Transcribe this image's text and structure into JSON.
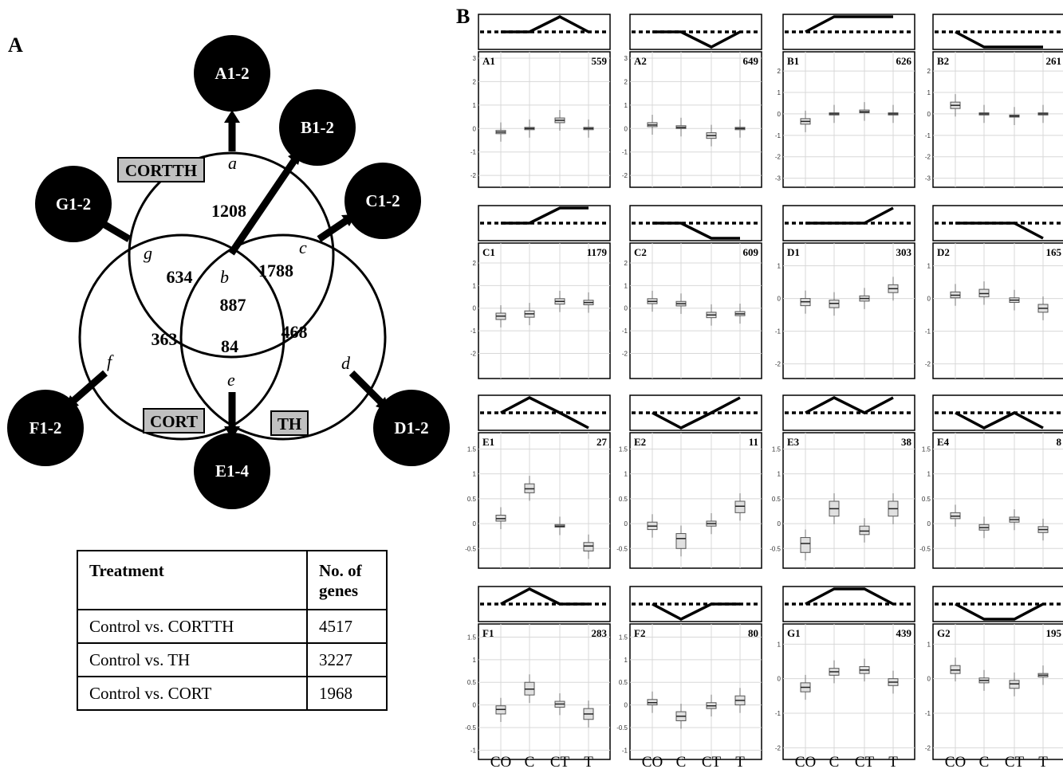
{
  "panel_labels": {
    "a": "A",
    "b": "B"
  },
  "venn": {
    "sets": [
      {
        "id": "cortth",
        "label": "CORTTH"
      },
      {
        "id": "cort",
        "label": "CORT"
      },
      {
        "id": "th",
        "label": "TH"
      }
    ],
    "region_letters": {
      "a": "a",
      "b": "b",
      "c": "c",
      "d": "d",
      "e": "e",
      "f": "f",
      "g": "g"
    },
    "region_counts": {
      "a": "1208",
      "g": "634",
      "b": "887",
      "c": "1788",
      "f": "363",
      "e": "84",
      "d": "468"
    },
    "nodes": {
      "a": "A1-2",
      "b": "B1-2",
      "c": "C1-2",
      "d": "D1-2",
      "e": "E1-4",
      "f": "F1-2",
      "g": "G1-2"
    },
    "fill_colors": {
      "node": "#000000",
      "tag": "#c0c0c0"
    }
  },
  "table": {
    "headers": [
      "Treatment",
      "No. of genes"
    ],
    "rows": [
      {
        "treatment": "Control vs. CORTTH",
        "genes": "4517"
      },
      {
        "treatment": "Control vs. TH",
        "genes": "3227"
      },
      {
        "treatment": "Control vs. CORT",
        "genes": "1968"
      }
    ]
  },
  "chart_data": {
    "type": "box",
    "categories": [
      "CO",
      "C",
      "CT",
      "T"
    ],
    "grid": true,
    "panels": [
      {
        "id": "A1",
        "count": "559",
        "pattern": [
          0,
          0,
          1,
          0
        ],
        "yticks": [
          "3",
          "2",
          "1",
          "0",
          "-1",
          "-2"
        ],
        "ylim": [
          -2.3,
          3
        ],
        "medians": [
          -0.15,
          0.0,
          0.35,
          0.0
        ],
        "q1": [
          -0.22,
          -0.05,
          0.25,
          -0.05
        ],
        "q3": [
          -0.08,
          0.05,
          0.45,
          0.05
        ]
      },
      {
        "id": "A2",
        "count": "649",
        "pattern": [
          0,
          0,
          -1,
          0
        ],
        "yticks": [
          "3",
          "2",
          "1",
          "0",
          "-1",
          "-2"
        ],
        "ylim": [
          -2.3,
          3
        ],
        "medians": [
          0.15,
          0.05,
          -0.3,
          0.0
        ],
        "q1": [
          0.08,
          0.0,
          -0.42,
          -0.05
        ],
        "q3": [
          0.25,
          0.12,
          -0.18,
          0.05
        ]
      },
      {
        "id": "B1",
        "count": "626",
        "pattern": [
          0,
          1,
          1,
          1
        ],
        "yticks": [
          "2",
          "1",
          "0",
          "-1",
          "-2",
          "-3"
        ],
        "ylim": [
          -3.2,
          2.6
        ],
        "medians": [
          -0.35,
          0.0,
          0.1,
          0.0
        ],
        "q1": [
          -0.48,
          -0.05,
          0.05,
          -0.05
        ],
        "q3": [
          -0.22,
          0.05,
          0.18,
          0.05
        ]
      },
      {
        "id": "B2",
        "count": "261",
        "pattern": [
          0,
          -1,
          -1,
          -1
        ],
        "yticks": [
          "2",
          "1",
          "0",
          "-1",
          "-2",
          "-3"
        ],
        "ylim": [
          -3.2,
          2.6
        ],
        "medians": [
          0.4,
          0.0,
          -0.1,
          0.0
        ],
        "q1": [
          0.25,
          -0.05,
          -0.15,
          -0.05
        ],
        "q3": [
          0.55,
          0.05,
          -0.05,
          0.05
        ]
      },
      {
        "id": "C1",
        "count": "1179",
        "pattern": [
          0,
          0,
          1,
          1
        ],
        "yticks": [
          "2",
          "1",
          "0",
          "-1",
          "-2"
        ],
        "ylim": [
          -2.9,
          2.6
        ],
        "medians": [
          -0.35,
          -0.25,
          0.3,
          0.25
        ],
        "q1": [
          -0.5,
          -0.4,
          0.18,
          0.15
        ],
        "q3": [
          -0.22,
          -0.12,
          0.42,
          0.35
        ]
      },
      {
        "id": "C2",
        "count": "609",
        "pattern": [
          0,
          0,
          -1,
          -1
        ],
        "yticks": [
          "2",
          "1",
          "0",
          "-1",
          "-2"
        ],
        "ylim": [
          -2.9,
          2.6
        ],
        "medians": [
          0.3,
          0.2,
          -0.3,
          -0.25
        ],
        "q1": [
          0.2,
          0.1,
          -0.42,
          -0.33
        ],
        "q3": [
          0.42,
          0.3,
          -0.18,
          -0.15
        ]
      },
      {
        "id": "D1",
        "count": "303",
        "pattern": [
          0,
          0,
          0,
          1
        ],
        "yticks": [
          "1",
          "0",
          "-1",
          "-2"
        ],
        "ylim": [
          -2.3,
          1.5
        ],
        "medians": [
          -0.1,
          -0.15,
          0.0,
          0.3
        ],
        "q1": [
          -0.22,
          -0.28,
          -0.08,
          0.18
        ],
        "q3": [
          0.0,
          -0.05,
          0.08,
          0.42
        ]
      },
      {
        "id": "D2",
        "count": "165",
        "pattern": [
          0,
          0,
          0,
          -1
        ],
        "yticks": [
          "1",
          "0",
          "-1",
          "-2"
        ],
        "ylim": [
          -2.3,
          1.5
        ],
        "medians": [
          0.1,
          0.15,
          -0.05,
          -0.3
        ],
        "q1": [
          0.02,
          0.05,
          -0.12,
          -0.42
        ],
        "q3": [
          0.2,
          0.28,
          0.02,
          -0.18
        ]
      },
      {
        "id": "E1",
        "count": "27",
        "pattern": [
          0,
          1,
          0,
          -1
        ],
        "yticks": [
          "1.5",
          "1",
          "0.5",
          "0",
          "-0.5"
        ],
        "ylim": [
          -0.8,
          1.7
        ],
        "medians": [
          0.1,
          0.7,
          -0.05,
          -0.45
        ],
        "q1": [
          0.05,
          0.62,
          -0.07,
          -0.55
        ],
        "q3": [
          0.17,
          0.8,
          -0.02,
          -0.38
        ]
      },
      {
        "id": "E2",
        "count": "11",
        "pattern": [
          0,
          -1,
          0,
          1
        ],
        "yticks": [
          "1.5",
          "1",
          "0.5",
          "0",
          "-0.5"
        ],
        "ylim": [
          -0.8,
          1.7
        ],
        "medians": [
          -0.05,
          -0.3,
          0.0,
          0.35
        ],
        "q1": [
          -0.12,
          -0.5,
          -0.05,
          0.22
        ],
        "q3": [
          0.03,
          -0.2,
          0.05,
          0.45
        ]
      },
      {
        "id": "E3",
        "count": "38",
        "pattern": [
          0,
          1,
          0,
          1
        ],
        "yticks": [
          "1.5",
          "1",
          "0.5",
          "0",
          "-0.5"
        ],
        "ylim": [
          -0.8,
          1.7
        ],
        "medians": [
          -0.4,
          0.3,
          -0.15,
          0.3
        ],
        "q1": [
          -0.58,
          0.15,
          -0.22,
          0.15
        ],
        "q3": [
          -0.28,
          0.45,
          -0.05,
          0.45
        ]
      },
      {
        "id": "E4",
        "count": "8",
        "pattern": [
          0,
          -1,
          0,
          -1
        ],
        "yticks": [
          "1.5",
          "1",
          "0.5",
          "0",
          "-0.5"
        ],
        "ylim": [
          -0.8,
          1.7
        ],
        "medians": [
          0.15,
          -0.08,
          0.08,
          -0.12
        ],
        "q1": [
          0.1,
          -0.13,
          0.03,
          -0.18
        ],
        "q3": [
          0.22,
          -0.02,
          0.13,
          -0.06
        ]
      },
      {
        "id": "F1",
        "count": "283",
        "pattern": [
          0,
          1,
          0,
          0
        ],
        "yticks": [
          "1.5",
          "1",
          "0.5",
          "0",
          "-0.5",
          "-1"
        ],
        "ylim": [
          -1.1,
          1.65
        ],
        "medians": [
          -0.1,
          0.35,
          0.02,
          -0.2
        ],
        "q1": [
          -0.2,
          0.22,
          -0.05,
          -0.32
        ],
        "q3": [
          -0.02,
          0.5,
          0.08,
          -0.08
        ]
      },
      {
        "id": "F2",
        "count": "80",
        "pattern": [
          0,
          -1,
          0,
          0
        ],
        "yticks": [
          "1.5",
          "1",
          "0.5",
          "0",
          "-0.5",
          "-1"
        ],
        "ylim": [
          -1.1,
          1.65
        ],
        "medians": [
          0.05,
          -0.25,
          -0.02,
          0.1
        ],
        "q1": [
          0.0,
          -0.35,
          -0.08,
          0.0
        ],
        "q3": [
          0.12,
          -0.15,
          0.05,
          0.2
        ]
      },
      {
        "id": "G1",
        "count": "439",
        "pattern": [
          0,
          1,
          1,
          0
        ],
        "yticks": [
          "1",
          "0",
          "-1",
          "-2"
        ],
        "ylim": [
          -2.2,
          1.4
        ],
        "medians": [
          -0.25,
          0.2,
          0.25,
          -0.1
        ],
        "q1": [
          -0.38,
          0.1,
          0.15,
          -0.2
        ],
        "q3": [
          -0.12,
          0.3,
          0.35,
          0.0
        ]
      },
      {
        "id": "G2",
        "count": "195",
        "pattern": [
          0,
          -1,
          -1,
          0
        ],
        "yticks": [
          "1",
          "0",
          "-1",
          "-2"
        ],
        "ylim": [
          -2.2,
          1.4
        ],
        "medians": [
          0.25,
          -0.05,
          -0.15,
          0.1
        ],
        "q1": [
          0.15,
          -0.12,
          -0.28,
          0.05
        ],
        "q3": [
          0.38,
          0.02,
          -0.05,
          0.15
        ]
      }
    ]
  }
}
